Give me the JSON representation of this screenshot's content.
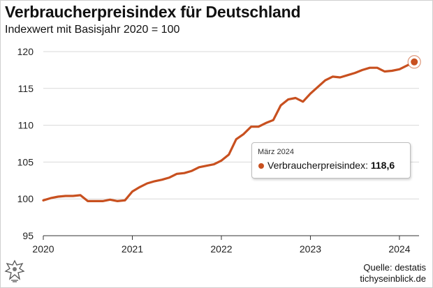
{
  "header": {
    "title": "Verbraucherpreisindex für Deutschland",
    "subtitle": "Indexwert mit Basisjahr 2020 = 100"
  },
  "tooltip": {
    "date": "März 2024",
    "series_label": "Verbraucherpreisindex:",
    "value": "118,6"
  },
  "footer": {
    "source": "Quelle: destatis",
    "site": "tichyseinblick.de",
    "logo_icon": "eagle-logo-icon"
  },
  "colors": {
    "line": "#c8501f",
    "grid": "#d9d9d9"
  },
  "chart_data": {
    "type": "line",
    "title": "Verbraucherpreisindex für Deutschland",
    "subtitle": "Indexwert mit Basisjahr 2020 = 100",
    "xlabel": "",
    "ylabel": "",
    "ylim": [
      95,
      120
    ],
    "yticks": [
      "95",
      "100",
      "105",
      "110",
      "115",
      "120"
    ],
    "xticks": [
      "2020",
      "2021",
      "2022",
      "2023",
      "2024"
    ],
    "grid": "horizontal",
    "series": [
      {
        "name": "Verbraucherpreisindex",
        "x": [
          "2020-01",
          "2020-02",
          "2020-03",
          "2020-04",
          "2020-05",
          "2020-06",
          "2020-07",
          "2020-08",
          "2020-09",
          "2020-10",
          "2020-11",
          "2020-12",
          "2021-01",
          "2021-02",
          "2021-03",
          "2021-04",
          "2021-05",
          "2021-06",
          "2021-07",
          "2021-08",
          "2021-09",
          "2021-10",
          "2021-11",
          "2021-12",
          "2022-01",
          "2022-02",
          "2022-03",
          "2022-04",
          "2022-05",
          "2022-06",
          "2022-07",
          "2022-08",
          "2022-09",
          "2022-10",
          "2022-11",
          "2022-12",
          "2023-01",
          "2023-02",
          "2023-03",
          "2023-04",
          "2023-05",
          "2023-06",
          "2023-07",
          "2023-08",
          "2023-09",
          "2023-10",
          "2023-11",
          "2023-12",
          "2024-01",
          "2024-02",
          "2024-03"
        ],
        "values": [
          99.8,
          100.1,
          100.3,
          100.4,
          100.4,
          100.5,
          99.7,
          99.7,
          99.7,
          99.9,
          99.7,
          99.8,
          101.0,
          101.6,
          102.1,
          102.4,
          102.6,
          102.9,
          103.4,
          103.5,
          103.8,
          104.3,
          104.5,
          104.7,
          105.2,
          106.0,
          108.1,
          108.8,
          109.8,
          109.8,
          110.3,
          110.7,
          112.7,
          113.5,
          113.7,
          113.2,
          114.3,
          115.2,
          116.1,
          116.6,
          116.5,
          116.8,
          117.1,
          117.5,
          117.8,
          117.8,
          117.3,
          117.4,
          117.6,
          118.1,
          118.6
        ]
      }
    ],
    "highlight": {
      "x": "2024-03",
      "value": 118.6,
      "label": "März 2024"
    }
  }
}
